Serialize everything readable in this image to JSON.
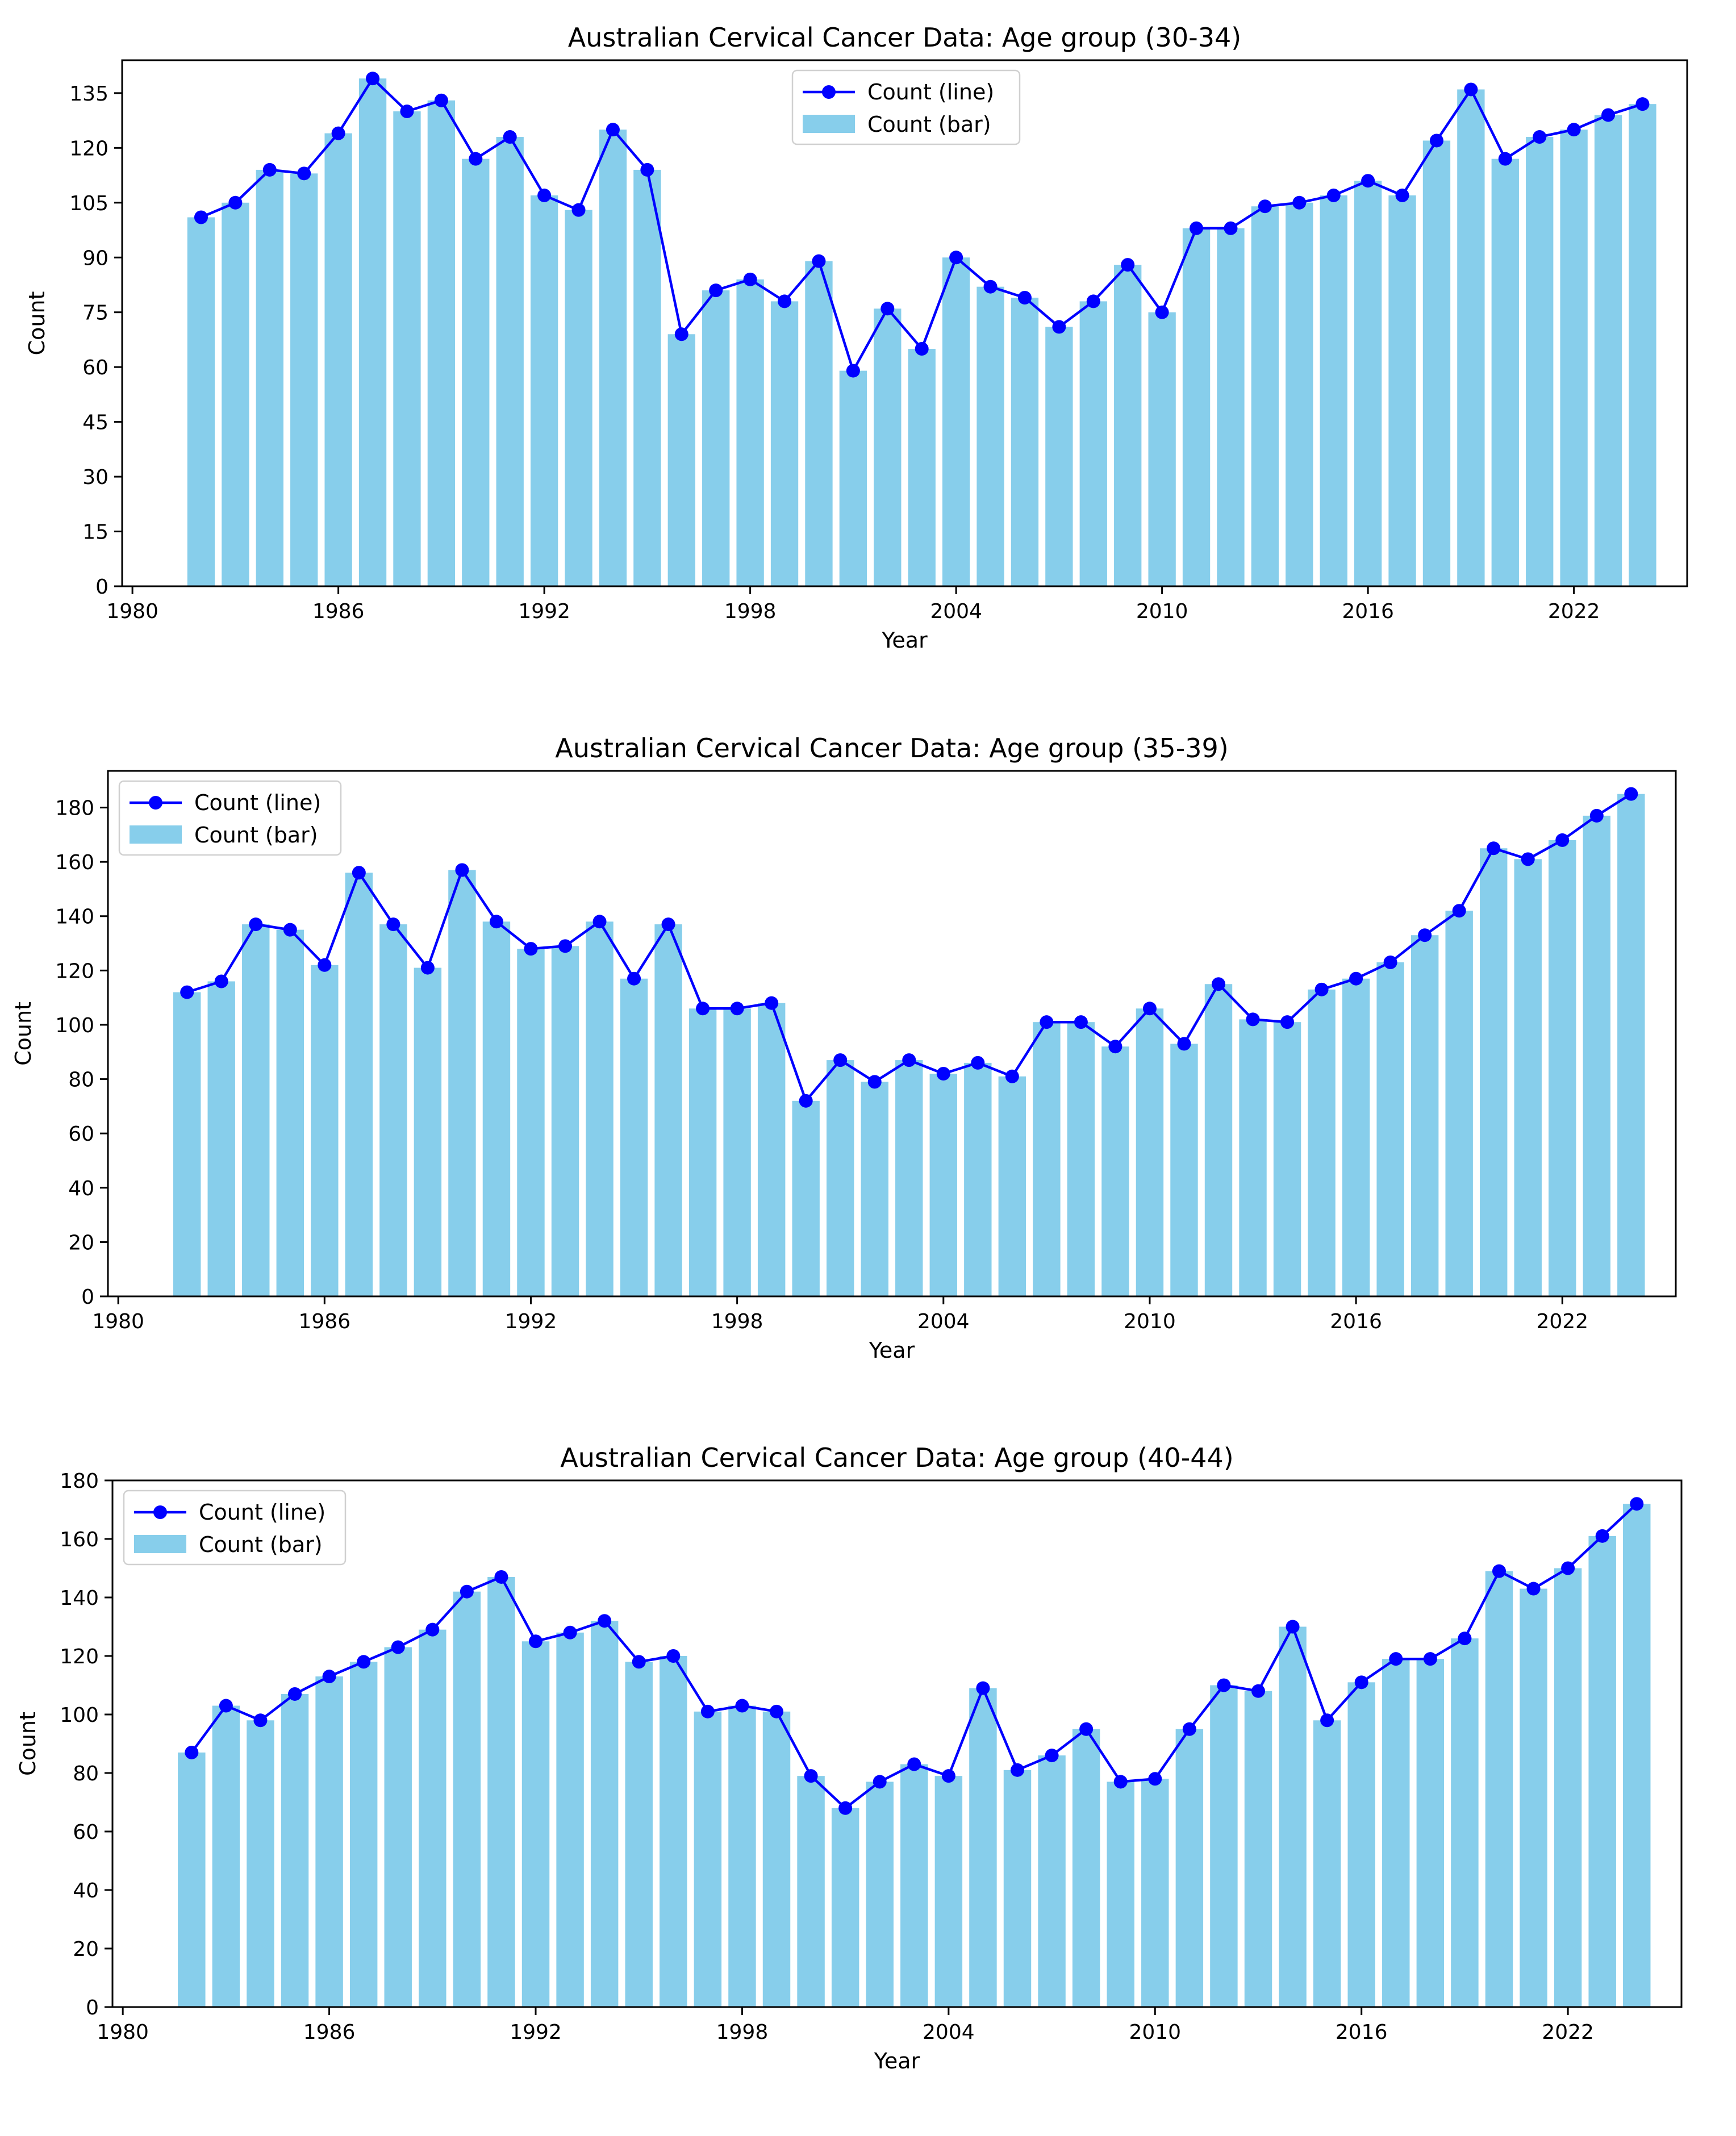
{
  "chart_data": [
    {
      "type": "bar",
      "title": "Australian Cervical Cancer Data: Age group (30-34)",
      "xlabel": "Year",
      "ylabel": "Count",
      "xlim": [
        1979.7,
        2025.3
      ],
      "ylim": [
        0,
        144
      ],
      "xticks": [
        "1980",
        "1986",
        "1992",
        "1998",
        "2004",
        "2010",
        "2016",
        "2022"
      ],
      "yticks": [
        "0",
        "15",
        "30",
        "45",
        "60",
        "75",
        "90",
        "105",
        "120",
        "135"
      ],
      "legend": {
        "placement": "upper-center",
        "line_label": "Count (line)",
        "bar_label": "Count (bar)"
      },
      "x": [
        1982,
        1983,
        1984,
        1985,
        1986,
        1987,
        1988,
        1989,
        1990,
        1991,
        1992,
        1993,
        1994,
        1995,
        1996,
        1997,
        1998,
        1999,
        2000,
        2001,
        2002,
        2003,
        2004,
        2005,
        2006,
        2007,
        2008,
        2009,
        2010,
        2011,
        2012,
        2013,
        2014,
        2015,
        2016,
        2017,
        2018,
        2019,
        2020,
        2021,
        2022,
        2023,
        2024
      ],
      "series": [
        {
          "values": [
            101,
            105,
            114,
            113,
            124,
            139,
            130,
            133,
            117,
            123,
            107,
            103,
            125,
            114,
            69,
            81,
            84,
            78,
            89,
            59,
            76,
            65,
            90,
            82,
            79,
            71,
            78,
            88,
            75,
            98,
            98,
            104,
            105,
            107,
            111,
            107,
            122,
            136,
            117,
            123,
            125,
            129,
            132
          ]
        }
      ],
      "colors": {
        "bar": "#87ceeb",
        "line": "#0000ff"
      }
    },
    {
      "type": "bar",
      "title": "Australian Cervical Cancer Data: Age group (35-39)",
      "xlabel": "Year",
      "ylabel": "Count",
      "xlim": [
        1979.7,
        2025.3
      ],
      "ylim": [
        0,
        193.5
      ],
      "xticks": [
        "1980",
        "1986",
        "1992",
        "1998",
        "2004",
        "2010",
        "2016",
        "2022"
      ],
      "yticks": [
        "0",
        "20",
        "40",
        "60",
        "80",
        "100",
        "120",
        "140",
        "160",
        "180"
      ],
      "legend": {
        "placement": "upper-left",
        "line_label": "Count (line)",
        "bar_label": "Count (bar)"
      },
      "x": [
        1982,
        1983,
        1984,
        1985,
        1986,
        1987,
        1988,
        1989,
        1990,
        1991,
        1992,
        1993,
        1994,
        1995,
        1996,
        1997,
        1998,
        1999,
        2000,
        2001,
        2002,
        2003,
        2004,
        2005,
        2006,
        2007,
        2008,
        2009,
        2010,
        2011,
        2012,
        2013,
        2014,
        2015,
        2016,
        2017,
        2018,
        2019,
        2020,
        2021,
        2022,
        2023,
        2024
      ],
      "series": [
        {
          "values": [
            112,
            116,
            137,
            135,
            122,
            156,
            137,
            121,
            157,
            138,
            128,
            129,
            138,
            117,
            137,
            106,
            106,
            108,
            72,
            87,
            79,
            87,
            82,
            86,
            81,
            101,
            101,
            92,
            106,
            93,
            115,
            102,
            101,
            113,
            117,
            123,
            133,
            142,
            165,
            161,
            168,
            177,
            185
          ]
        }
      ],
      "colors": {
        "bar": "#87ceeb",
        "line": "#0000ff"
      }
    },
    {
      "type": "bar",
      "title": "Australian Cervical Cancer Data: Age group (40-44)",
      "xlabel": "Year",
      "ylabel": "Count",
      "xlim": [
        1979.7,
        2025.3
      ],
      "ylim": [
        0,
        180
      ],
      "xticks": [
        "1980",
        "1986",
        "1992",
        "1998",
        "2004",
        "2010",
        "2016",
        "2022"
      ],
      "yticks": [
        "0",
        "20",
        "40",
        "60",
        "80",
        "100",
        "120",
        "140",
        "160",
        "180"
      ],
      "legend": {
        "placement": "upper-left",
        "line_label": "Count (line)",
        "bar_label": "Count (bar)"
      },
      "x": [
        1982,
        1983,
        1984,
        1985,
        1986,
        1987,
        1988,
        1989,
        1990,
        1991,
        1992,
        1993,
        1994,
        1995,
        1996,
        1997,
        1998,
        1999,
        2000,
        2001,
        2002,
        2003,
        2004,
        2005,
        2006,
        2007,
        2008,
        2009,
        2010,
        2011,
        2012,
        2013,
        2014,
        2015,
        2016,
        2017,
        2018,
        2019,
        2020,
        2021,
        2022,
        2023,
        2024
      ],
      "series": [
        {
          "values": [
            87,
            103,
            98,
            107,
            113,
            118,
            123,
            129,
            142,
            147,
            125,
            128,
            132,
            118,
            120,
            101,
            103,
            101,
            79,
            68,
            77,
            83,
            79,
            109,
            81,
            86,
            95,
            77,
            78,
            95,
            110,
            108,
            130,
            98,
            111,
            119,
            119,
            126,
            149,
            143,
            150,
            161,
            172
          ]
        }
      ],
      "colors": {
        "bar": "#87ceeb",
        "line": "#0000ff"
      }
    }
  ]
}
